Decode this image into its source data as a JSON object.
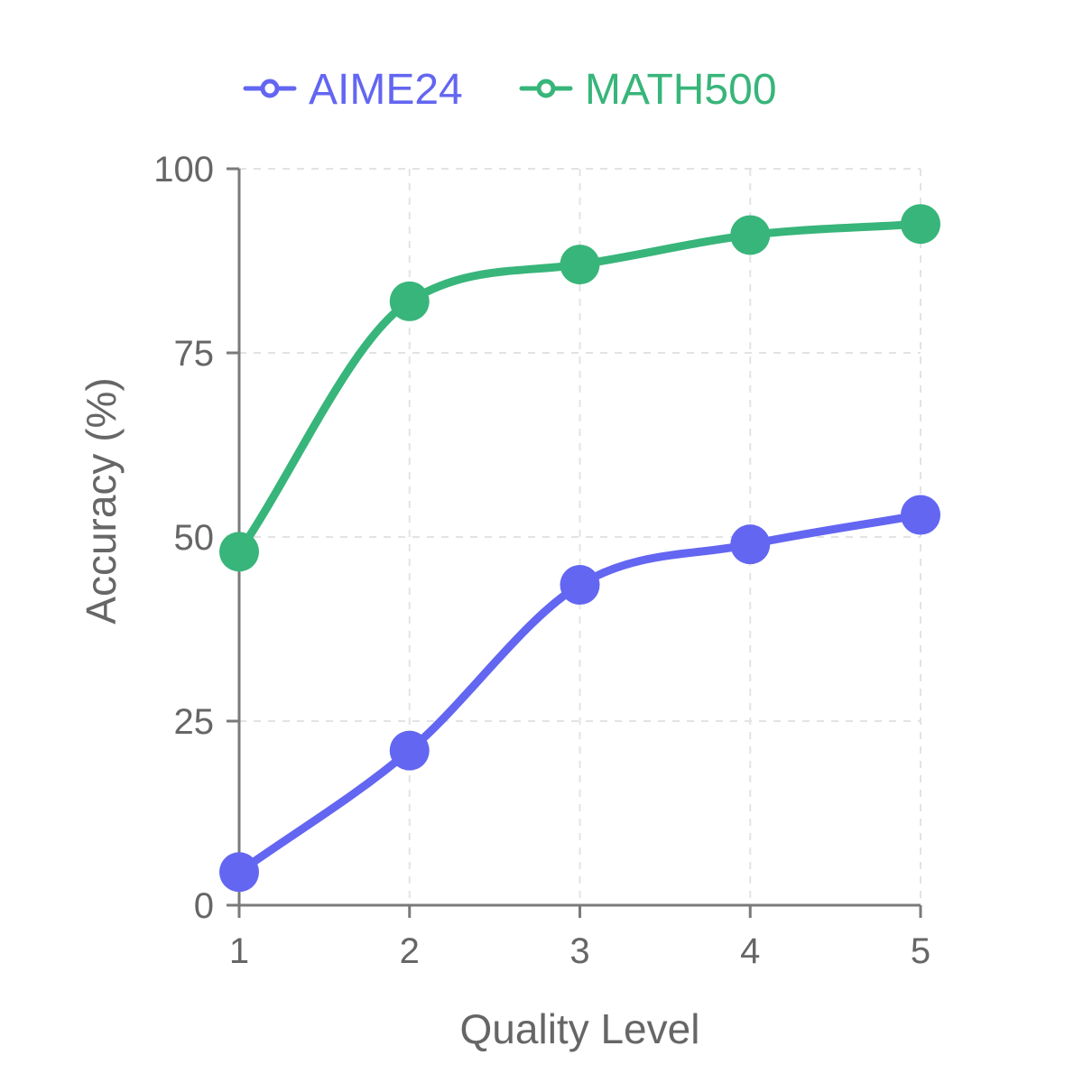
{
  "chart_data": {
    "type": "line",
    "title": "",
    "xlabel": "Quality Level",
    "ylabel": "Accuracy (%)",
    "x": [
      1,
      2,
      3,
      4,
      5
    ],
    "x_ticks": [
      "1",
      "2",
      "3",
      "4",
      "5"
    ],
    "xlim": [
      1,
      5
    ],
    "ylim": [
      0,
      100
    ],
    "y_ticks": [
      0,
      25,
      50,
      75,
      100
    ],
    "grid": true,
    "legend_position": "top-center",
    "series": [
      {
        "name": "AIME24",
        "color": "#6366f1",
        "values": [
          4.5,
          21,
          43.5,
          49,
          53
        ]
      },
      {
        "name": "MATH500",
        "color": "#38b57a",
        "values": [
          48,
          82,
          87,
          91,
          92.5
        ]
      }
    ]
  }
}
